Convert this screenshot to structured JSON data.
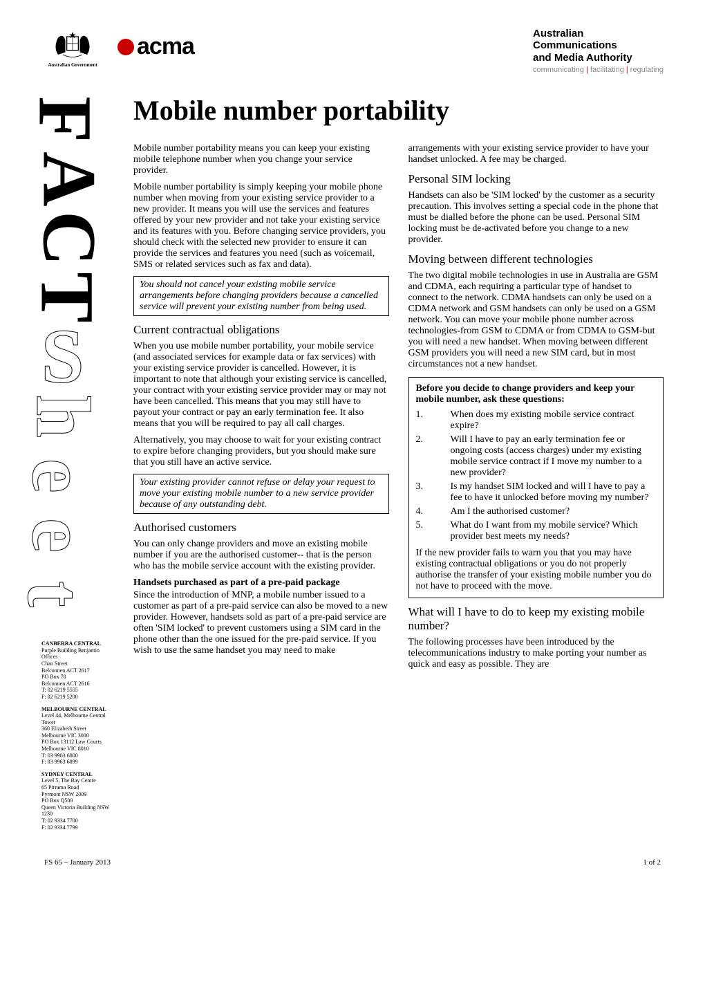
{
  "header": {
    "gov_label": "Australian Government",
    "acma_text": "acma",
    "authority_lines": [
      "Australian",
      "Communications",
      "and Media Authority"
    ],
    "tagline_parts": [
      "communicating",
      "facilitating",
      "regulating"
    ]
  },
  "title": "Mobile number portability",
  "intro_paragraphs": [
    "Mobile number portability means you can keep your existing mobile telephone number when you change your service provider.",
    "Mobile number portability is simply keeping your mobile phone number when moving from your existing service provider to a new provider. It means you will use the services and features offered by your new provider and not take your existing service and its features with you. Before changing service providers, you should check with the selected new provider to ensure it can provide the services and features you need (such as voicemail, SMS or related services such as fax and data)."
  ],
  "callout1": "You should not cancel your existing mobile service arrangements before changing providers because a cancelled service will prevent your existing number from being used.",
  "sec_contract": {
    "heading": "Current contractual obligations",
    "paras": [
      "When you use mobile number portability, your mobile service (and associated services for example data or fax services) with your existing service provider is cancelled. However, it is important to note that although your existing service is cancelled, your contract with your existing service provider may or may not have been cancelled. This means that you may still have to payout your contract or pay an early termination fee. It also means that you will be required to pay all call charges.",
      "Alternatively, you may choose to wait for your existing contract to expire before changing providers, but you should make sure that you still have an active service."
    ]
  },
  "callout2": "Your existing provider cannot refuse or delay your request to move your existing mobile number to a new service provider because of any outstanding debt.",
  "sec_auth": {
    "heading": "Authorised customers",
    "para": "You can only change providers and move an existing mobile number if you are the authorised customer-- that is the person who has the mobile service account with the existing provider."
  },
  "sec_prepaid": {
    "heading": "Handsets purchased as part of a pre-paid package",
    "para": "Since the introduction of MNP, a mobile number issued to a customer as part of a pre-paid service can also be moved to a new provider. However, handsets sold as part of a pre-paid service are often 'SIM locked' to prevent customers using a SIM card in the phone other than the one issued for the pre-paid service. If you wish to use the same handset you may need to make arrangements with your existing service provider to have your handset unlocked. A fee may be charged."
  },
  "sec_sim": {
    "heading": "Personal SIM locking",
    "para": "Handsets can also be 'SIM locked' by the customer as a security precaution. This involves setting a special code in the phone that must be dialled before the phone can be used. Personal SIM locking must be de-activated before you change to a new provider."
  },
  "sec_tech": {
    "heading": "Moving between different technologies",
    "para": "The two digital mobile technologies in use in Australia are GSM and CDMA, each requiring a particular type of handset to connect to the network. CDMA handsets can only be used on a CDMA network and GSM handsets can only be used on a GSM network. You can move your mobile phone number across technologies-from GSM to CDMA or from CDMA to GSM-but you will need a new handset. When moving between different GSM providers you will need a new SIM card, but in most circumstances not a new handset."
  },
  "qbox": {
    "lead": "Before you decide to change providers and keep your mobile number, ask these questions:",
    "items": [
      "When does my existing mobile service contract expire?",
      "Will I have to pay an early termination fee or ongoing costs (access charges) under my existing mobile service contract if I move my number to a new provider?",
      "Is my handset SIM locked and will I have to pay a fee to have it unlocked before moving my number?",
      "Am I the authorised customer?",
      "What do I want from my mobile service? Which provider best meets my needs?"
    ],
    "trailer": "If the new provider fails to warn you that you may have existing contractual obligations or you do not properly authorise the transfer of your existing mobile number you do not have to proceed with the move."
  },
  "sec_todo": {
    "heading": "What will I have to do to keep my existing mobile number?",
    "para": "The following processes have been introduced by the telecommunications industry to make porting your number as quick and easy as possible. They are"
  },
  "offices": [
    {
      "name": "CANBERRA CENTRAL",
      "lines": [
        "Purple Building Benjamin Offices",
        "Chan Street",
        "Belconnen ACT 2617",
        "PO Box 78",
        "Belconnen ACT 2616",
        "T: 02 6219 5555",
        "F: 02 6219 5200"
      ]
    },
    {
      "name": "MELBOURNE CENTRAL",
      "lines": [
        "Level 44, Melbourne Central Tower",
        "360 Elizabeth Street",
        "Melbourne VIC 3000",
        "PO Box 13112 Law Courts",
        "Melbourne VIC 8010",
        "T: 03 9963 6800",
        "F: 03 9963 6899"
      ]
    },
    {
      "name": "SYDNEY CENTRAL",
      "lines": [
        "Level 5, The Bay Centre",
        "65 Pirrama Road",
        "Pyrmont NSW 2009",
        "PO Box Q500",
        "Queen Victoria Building NSW 1230",
        "T: 02 9334 7700",
        "F: 02 9334 7799"
      ]
    }
  ],
  "footer": {
    "left": "FS 65 – January 2013",
    "right": "1 of 2"
  },
  "colors": {
    "accent_red": "#c00",
    "text_gray": "#888888"
  }
}
